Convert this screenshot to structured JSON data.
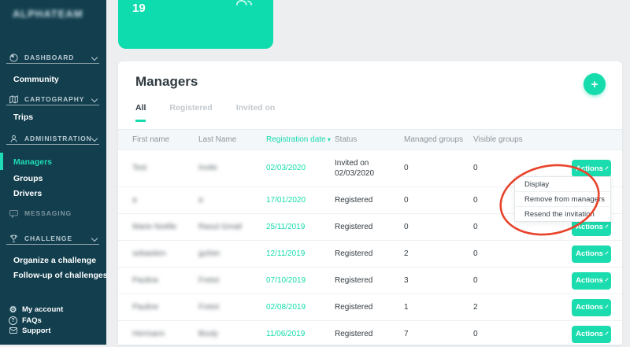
{
  "app": {
    "logo": "ALPHATEAM"
  },
  "summary_card": {
    "value": "19",
    "icon": "team-icon"
  },
  "sidebar": {
    "items": [
      {
        "type": "section",
        "label": "DASHBOARD",
        "icon": "gauge-icon",
        "chevron": true,
        "divider": true
      },
      {
        "type": "item",
        "label": "Community"
      },
      {
        "type": "section",
        "label": "CARTOGRAPHY",
        "icon": "map-icon",
        "chevron": true,
        "divider": true
      },
      {
        "type": "item",
        "label": "Trips"
      },
      {
        "type": "section",
        "label": "ADMINISTRATION",
        "icon": "user-icon",
        "chevron": true,
        "divider": true
      },
      {
        "type": "item",
        "label": "Managers",
        "active": true
      },
      {
        "type": "item",
        "label": "Groups"
      },
      {
        "type": "item",
        "label": "Drivers"
      },
      {
        "type": "section",
        "label": "MESSAGING",
        "icon": "chat-icon",
        "chevron": false,
        "divider": false,
        "muted": true
      },
      {
        "type": "section",
        "label": "CHALLENGE",
        "icon": "trophy-icon",
        "chevron": true,
        "divider": true
      },
      {
        "type": "item",
        "label": "Organize a challenge"
      },
      {
        "type": "item",
        "label": "Follow-up of challenges"
      }
    ],
    "footer_items": [
      {
        "label": "My account",
        "icon": "gear-icon"
      },
      {
        "label": "FAQs",
        "icon": "question-icon"
      },
      {
        "label": "Support",
        "icon": "envelope-icon"
      }
    ]
  },
  "header": {
    "title": "Managers",
    "add_button": "+"
  },
  "tabs": [
    {
      "label": "All",
      "active": true
    },
    {
      "label": "Registered",
      "active": false
    },
    {
      "label": "Invited on",
      "active": false
    }
  ],
  "table": {
    "columns": [
      "First name",
      "Last Name",
      "Registration date",
      "Status",
      "Managed groups",
      "Visible groups"
    ],
    "sorted_column": "Registration date",
    "sort_caret": "▾",
    "action_label": "Actions",
    "rows": [
      {
        "first_name": "Test",
        "last_name": "Invite",
        "blurred": true,
        "date": "02/03/2020",
        "status": "Invited on 02/03/2020",
        "managed_groups": "0",
        "visible_groups": "0"
      },
      {
        "first_name": "a",
        "last_name": "a",
        "blurred": true,
        "date": "17/01/2020",
        "status": "Registered",
        "managed_groups": "0",
        "visible_groups": "0"
      },
      {
        "first_name": "Marie Noëlle",
        "last_name": "Raoul Gmail",
        "blurred": true,
        "date": "25/11/2019",
        "status": "Registered",
        "managed_groups": "0",
        "visible_groups": "0"
      },
      {
        "first_name": "sebastien",
        "last_name": "guhier",
        "blurred": true,
        "date": "12/11/2019",
        "status": "Registered",
        "managed_groups": "2",
        "visible_groups": "0"
      },
      {
        "first_name": "Pauline",
        "last_name": "Fretot",
        "blurred": true,
        "date": "07/10/2019",
        "status": "Registered",
        "managed_groups": "3",
        "visible_groups": "0"
      },
      {
        "first_name": "Pauline",
        "last_name": "Fretot",
        "blurred": true,
        "date": "02/08/2019",
        "status": "Registered",
        "managed_groups": "1",
        "visible_groups": "2"
      },
      {
        "first_name": "Hermann",
        "last_name": "Bouly",
        "blurred": true,
        "date": "11/06/2019",
        "status": "Registered",
        "managed_groups": "7",
        "visible_groups": "0"
      }
    ]
  },
  "dropdown": {
    "items": [
      "Display",
      "Remove from managers",
      "Resend the invitation"
    ]
  },
  "annotation": {
    "shape": "hand-drawn-ellipse",
    "color": "#e8432b"
  },
  "colors": {
    "accent": "#15dbad",
    "sidebar_background": "#123e4e",
    "annotation_red": "#e8432b"
  }
}
